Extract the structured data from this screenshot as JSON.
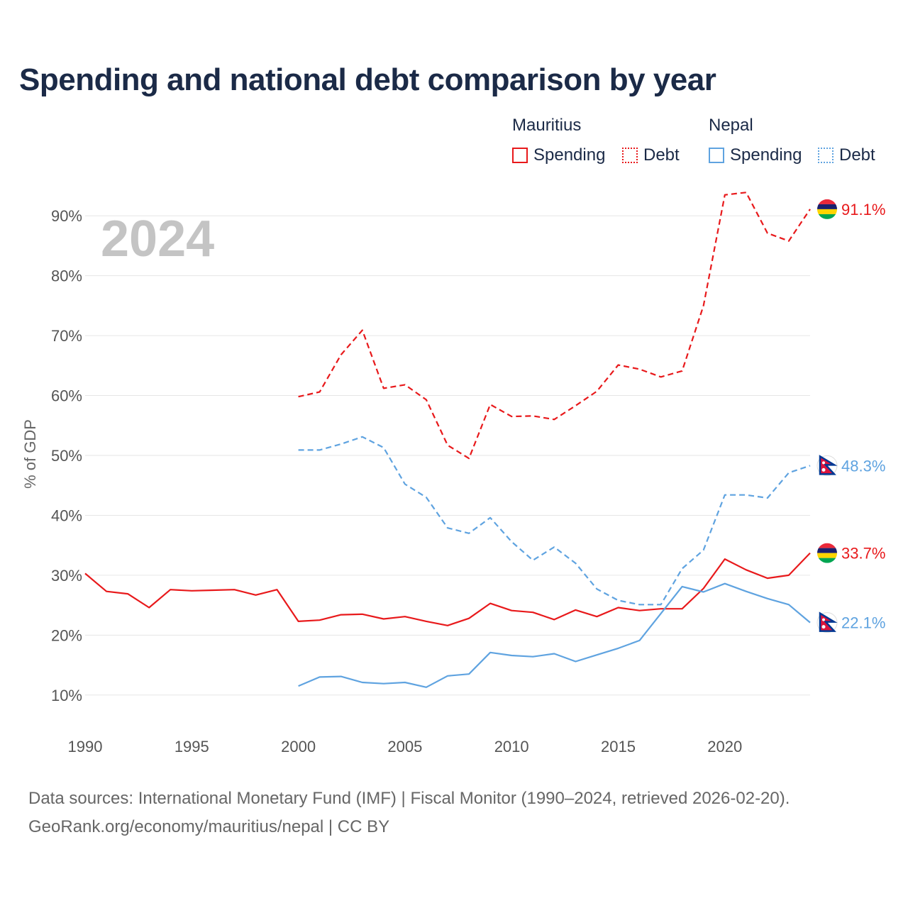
{
  "title": "Spending and national debt comparison by year",
  "year_label": "2024",
  "legend": {
    "groups": [
      {
        "country": "Mauritius",
        "color": "#e8191b",
        "items": [
          {
            "label": "Spending",
            "style": "solid"
          },
          {
            "label": "Debt",
            "style": "dotted"
          }
        ]
      },
      {
        "country": "Nepal",
        "color": "#5fa3e0",
        "items": [
          {
            "label": "Spending",
            "style": "solid"
          },
          {
            "label": "Debt",
            "style": "dotted"
          }
        ]
      }
    ]
  },
  "footer": {
    "line1": "Data sources: International Monetary Fund (IMF) | Fiscal Monitor (1990–2024, retrieved 2026-02-20).",
    "line2": "GeoRank.org/economy/mauritius/nepal | CC BY"
  },
  "chart_data": {
    "type": "line",
    "title": "Spending and national debt comparison by year",
    "xlabel": "",
    "ylabel": "% of GDP",
    "xlim": [
      1990,
      2024
    ],
    "ylim": [
      5,
      95
    ],
    "x_ticks": [
      1990,
      1995,
      2000,
      2005,
      2010,
      2015,
      2020
    ],
    "y_ticks": [
      10,
      20,
      30,
      40,
      50,
      60,
      70,
      80,
      90
    ],
    "y_tick_labels": [
      "10%",
      "20%",
      "30%",
      "40%",
      "50%",
      "60%",
      "70%",
      "80%",
      "90%"
    ],
    "grid": true,
    "series": [
      {
        "name": "Mauritius Debt",
        "country": "Mauritius",
        "color": "#e8191b",
        "dash": "dashed",
        "end_label": "91.1%",
        "flag": "mauritius",
        "x": [
          2000,
          2001,
          2002,
          2003,
          2004,
          2005,
          2006,
          2007,
          2008,
          2009,
          2010,
          2011,
          2012,
          2013,
          2014,
          2015,
          2016,
          2017,
          2018,
          2019,
          2020,
          2021,
          2022,
          2023,
          2024
        ],
        "values": [
          59.8,
          60.6,
          66.8,
          70.9,
          61.2,
          61.8,
          59.3,
          51.7,
          49.5,
          58.5,
          56.5,
          56.6,
          56.0,
          58.3,
          60.7,
          65.1,
          64.4,
          63.1,
          64.1,
          75.0,
          93.5,
          93.9,
          87.1,
          85.8,
          91.1
        ]
      },
      {
        "name": "Nepal Debt",
        "country": "Nepal",
        "color": "#5fa3e0",
        "dash": "dashed",
        "end_label": "48.3%",
        "flag": "nepal",
        "x": [
          2000,
          2001,
          2002,
          2003,
          2004,
          2005,
          2006,
          2007,
          2008,
          2009,
          2010,
          2011,
          2012,
          2013,
          2014,
          2015,
          2016,
          2017,
          2018,
          2019,
          2020,
          2021,
          2022,
          2023,
          2024
        ],
        "values": [
          50.9,
          50.9,
          51.9,
          53.1,
          51.3,
          45.2,
          43.0,
          37.9,
          37.0,
          39.6,
          35.6,
          32.5,
          34.7,
          32.0,
          27.7,
          25.8,
          25.1,
          25.1,
          31.1,
          34.2,
          43.4,
          43.4,
          42.9,
          47.1,
          48.3
        ]
      },
      {
        "name": "Mauritius Spending",
        "country": "Mauritius",
        "color": "#e8191b",
        "dash": "solid",
        "end_label": "33.7%",
        "flag": "mauritius",
        "x": [
          1990,
          1991,
          1992,
          1993,
          1994,
          1995,
          1996,
          1997,
          1998,
          1999,
          2000,
          2001,
          2002,
          2003,
          2004,
          2005,
          2006,
          2007,
          2008,
          2009,
          2010,
          2011,
          2012,
          2013,
          2014,
          2015,
          2016,
          2017,
          2018,
          2019,
          2020,
          2021,
          2022,
          2023,
          2024
        ],
        "values": [
          30.3,
          27.3,
          26.9,
          24.6,
          27.6,
          27.4,
          27.5,
          27.6,
          26.7,
          27.6,
          22.3,
          22.5,
          23.4,
          23.5,
          22.7,
          23.1,
          22.3,
          21.6,
          22.8,
          25.3,
          24.1,
          23.8,
          22.6,
          24.2,
          23.1,
          24.6,
          24.1,
          24.4,
          24.4,
          27.8,
          32.7,
          30.9,
          29.5,
          30.0,
          33.7
        ]
      },
      {
        "name": "Nepal Spending",
        "country": "Nepal",
        "color": "#5fa3e0",
        "dash": "solid",
        "end_label": "22.1%",
        "flag": "nepal",
        "x": [
          2000,
          2001,
          2002,
          2003,
          2004,
          2005,
          2006,
          2007,
          2008,
          2009,
          2010,
          2011,
          2012,
          2013,
          2014,
          2015,
          2016,
          2017,
          2018,
          2019,
          2020,
          2021,
          2022,
          2023,
          2024
        ],
        "values": [
          11.5,
          13.0,
          13.1,
          12.1,
          11.9,
          12.1,
          11.3,
          13.2,
          13.5,
          17.1,
          16.6,
          16.4,
          16.9,
          15.6,
          16.7,
          17.8,
          19.1,
          23.6,
          28.1,
          27.2,
          28.6,
          27.3,
          26.1,
          25.1,
          22.1
        ]
      }
    ]
  }
}
